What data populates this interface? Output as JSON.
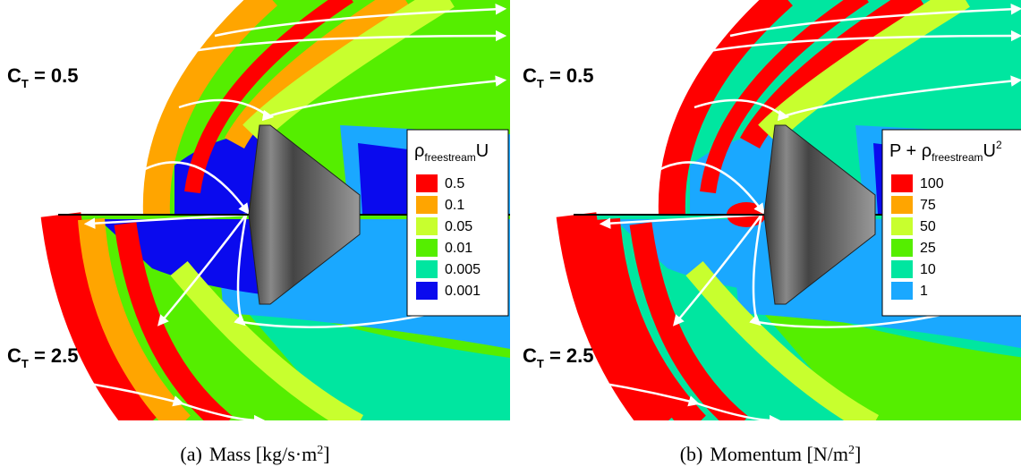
{
  "panels": [
    {
      "top_label": {
        "main": "C",
        "sub": "T",
        "rest": " = 0.5"
      },
      "bottom_label": {
        "main": "C",
        "sub": "T",
        "rest": " = 2.5"
      },
      "legend": {
        "title": {
          "pre": "ρ",
          "sub": "freestream",
          "post": "U"
        },
        "levels": [
          {
            "label": "0.5",
            "color": "#ff0000"
          },
          {
            "label": "0.1",
            "color": "#ffa500"
          },
          {
            "label": "0.05",
            "color": "#c8ff2e"
          },
          {
            "label": "0.01",
            "color": "#55ee00"
          },
          {
            "label": "0.005",
            "color": "#00e6a0"
          },
          {
            "label": "0.001",
            "color": "#0a0aee"
          }
        ]
      },
      "caption": {
        "tag": "(a)",
        "text": "Mass [kg/s·m",
        "sup": "2",
        "end": "]"
      }
    },
    {
      "top_label": {
        "main": "C",
        "sub": "T",
        "rest": " = 0.5"
      },
      "bottom_label": {
        "main": "C",
        "sub": "T",
        "rest": " = 2.5"
      },
      "legend": {
        "title": {
          "pre": "P + ρ",
          "sub": "freestream",
          "post": "U",
          "sup": "2"
        },
        "levels": [
          {
            "label": "100",
            "color": "#ff0000"
          },
          {
            "label": "75",
            "color": "#ffa500"
          },
          {
            "label": "50",
            "color": "#c8ff2e"
          },
          {
            "label": "25",
            "color": "#55ee00"
          },
          {
            "label": "10",
            "color": "#00e6a0"
          },
          {
            "label": "1",
            "color": "#1aa8ff"
          }
        ]
      },
      "caption": {
        "tag": "(b)",
        "text": "Momentum [N/m",
        "sup": "2",
        "end": "]"
      }
    }
  ]
}
